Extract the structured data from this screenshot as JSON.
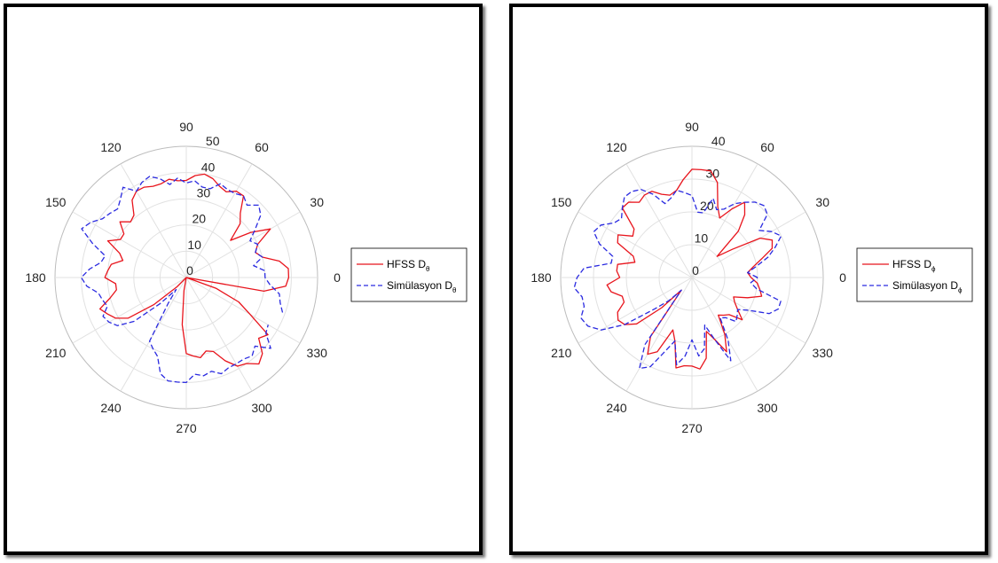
{
  "chart_data": [
    {
      "type": "polar",
      "angle_unit": "degrees",
      "angular_ticks": [
        0,
        30,
        60,
        90,
        120,
        150,
        180,
        210,
        240,
        270,
        300,
        330
      ],
      "angular_tick_labels": [
        "0",
        "30",
        "60",
        "90",
        "120",
        "150",
        "180",
        "210",
        "240",
        "270",
        "300",
        "330"
      ],
      "rlim": [
        0,
        50
      ],
      "radial_ticks": [
        0,
        10,
        20,
        30,
        40,
        50
      ],
      "radial_tick_labels": [
        "0",
        "10",
        "20",
        "30",
        "40",
        "50"
      ],
      "radial_label_angle": 80,
      "grid": true,
      "legend": {
        "position": "right"
      },
      "series": [
        {
          "name": "HFSS D",
          "subscript": "θ",
          "color": "#e8141c",
          "dash": "solid",
          "theta": [
            -15,
            -10,
            -5,
            0,
            5,
            10,
            15,
            20,
            25,
            30,
            35,
            40,
            45,
            50,
            55,
            60,
            65,
            70,
            75,
            80,
            85,
            90,
            95,
            100,
            105,
            110,
            115,
            120,
            125,
            130,
            135,
            140,
            145,
            150,
            155,
            160,
            165,
            170,
            175,
            180,
            185,
            190,
            195,
            200,
            205,
            210,
            215,
            220,
            225,
            230,
            240,
            250,
            255,
            260,
            265,
            270,
            275,
            280,
            285,
            290,
            295,
            300,
            305,
            310,
            315,
            320,
            325,
            330,
            335,
            340,
            345
          ],
          "r": [
            0,
            30,
            38,
            39,
            39,
            36,
            30,
            28,
            30,
            37,
            30,
            22,
            29,
            32,
            38,
            38,
            36,
            37,
            39,
            40,
            39,
            37,
            37,
            38,
            37,
            37,
            38,
            38,
            36,
            31,
            30,
            33,
            29,
            29,
            33,
            27,
            25,
            29,
            30,
            31,
            27,
            27,
            30,
            35,
            33,
            31,
            27,
            16,
            5,
            0,
            0,
            0,
            0,
            5,
            18,
            29,
            30,
            31,
            29,
            30,
            35,
            39,
            40,
            43,
            41,
            36,
            38,
            28,
            22,
            12,
            0
          ]
        },
        {
          "name": "Simülasyon D",
          "subscript": "θ",
          "color": "#2a2ae0",
          "dash": "dashed",
          "theta": [
            -20,
            -15,
            -10,
            -5,
            0,
            5,
            10,
            15,
            20,
            25,
            30,
            35,
            40,
            45,
            50,
            55,
            60,
            65,
            70,
            75,
            80,
            85,
            90,
            95,
            100,
            105,
            110,
            115,
            120,
            125,
            130,
            135,
            140,
            145,
            150,
            155,
            160,
            165,
            170,
            175,
            180,
            185,
            190,
            195,
            200,
            205,
            210,
            215,
            220,
            225,
            230,
            235,
            240,
            245,
            250,
            255,
            260,
            265,
            270,
            275,
            280,
            285,
            290,
            295,
            300,
            305,
            310,
            315,
            320,
            325,
            330
          ],
          "r": [
            39,
            37,
            36,
            32,
            30,
            30,
            26,
            30,
            28,
            30,
            28,
            32,
            37,
            39,
            36,
            38,
            37,
            37,
            38,
            35,
            35,
            37,
            36,
            38,
            36,
            39,
            41,
            40,
            38,
            42,
            39,
            37,
            38,
            39,
            42,
            44,
            38,
            32,
            33,
            37,
            40,
            38,
            34,
            33,
            32,
            35,
            34,
            32,
            26,
            14,
            6,
            12,
            28,
            30,
            32,
            38,
            40,
            40,
            40,
            37,
            38,
            37,
            39,
            38,
            38,
            38,
            39,
            37,
            42,
            37,
            36
          ]
        }
      ]
    },
    {
      "type": "polar",
      "angle_unit": "degrees",
      "angular_ticks": [
        0,
        30,
        60,
        90,
        120,
        150,
        180,
        210,
        240,
        270,
        300,
        330
      ],
      "angular_tick_labels": [
        "0",
        "30",
        "60",
        "90",
        "120",
        "150",
        "180",
        "210",
        "240",
        "270",
        "300",
        "330"
      ],
      "rlim": [
        0,
        40
      ],
      "radial_ticks": [
        0,
        10,
        20,
        30,
        40
      ],
      "radial_tick_labels": [
        "0",
        "10",
        "20",
        "30",
        "40"
      ],
      "radial_label_angle": 80,
      "grid": true,
      "legend": {
        "position": "right"
      },
      "series": [
        {
          "name": "HFSS D",
          "subscript": "ϕ",
          "color": "#e8141c",
          "dash": "solid",
          "theta": [
            0,
            5,
            10,
            15,
            20,
            25,
            30,
            35,
            40,
            45,
            50,
            55,
            60,
            65,
            70,
            75,
            80,
            85,
            90,
            95,
            100,
            105,
            110,
            115,
            120,
            125,
            130,
            135,
            140,
            145,
            150,
            155,
            160,
            165,
            170,
            175,
            180,
            185,
            190,
            195,
            200,
            205,
            210,
            215,
            220,
            225,
            230,
            235,
            240,
            245,
            250,
            255,
            260,
            265,
            270,
            275,
            280,
            285,
            290,
            295,
            300,
            305,
            310,
            315,
            320,
            325,
            330,
            335,
            340,
            345,
            350,
            355,
            360
          ],
          "r": [
            18,
            17,
            19,
            22,
            26,
            27,
            24,
            15,
            10,
            20,
            25,
            28,
            24,
            20,
            23,
            30,
            33,
            33,
            33,
            30,
            27,
            26,
            27,
            29,
            29,
            28,
            30,
            30,
            23,
            22,
            26,
            25,
            19,
            18,
            23,
            23,
            22,
            26,
            25,
            22,
            22,
            25,
            26,
            25,
            22,
            13,
            5,
            22,
            27,
            25,
            17,
            20,
            28,
            27,
            27,
            28,
            25,
            17,
            20,
            25,
            20,
            14,
            15,
            16,
            20,
            17,
            15,
            14,
            18,
            22,
            21,
            20,
            18
          ]
        },
        {
          "name": "Simülasyon D",
          "subscript": "ϕ",
          "color": "#2a2ae0",
          "dash": "dashed",
          "theta": [
            0,
            5,
            10,
            15,
            20,
            25,
            30,
            35,
            40,
            45,
            50,
            55,
            60,
            65,
            70,
            75,
            80,
            85,
            90,
            95,
            100,
            105,
            110,
            115,
            120,
            125,
            130,
            135,
            140,
            145,
            150,
            155,
            160,
            165,
            170,
            175,
            180,
            185,
            190,
            195,
            200,
            205,
            210,
            215,
            220,
            225,
            230,
            235,
            240,
            245,
            250,
            255,
            260,
            265,
            270,
            275,
            280,
            285,
            290,
            295,
            300,
            305,
            310,
            315,
            320,
            325,
            330,
            335,
            340,
            345,
            350,
            355,
            360
          ],
          "r": [
            20,
            17,
            20,
            24,
            27,
            30,
            28,
            25,
            30,
            31,
            30,
            28,
            26,
            23,
            22,
            25,
            20,
            20,
            25,
            26,
            27,
            25,
            24,
            28,
            31,
            32,
            32,
            30,
            28,
            29,
            32,
            33,
            30,
            25,
            25,
            33,
            35,
            36,
            34,
            34,
            36,
            35,
            32,
            25,
            15,
            10,
            5,
            25,
            32,
            30,
            24,
            20,
            27,
            24,
            19,
            24,
            22,
            15,
            20,
            28,
            22,
            15,
            16,
            19,
            18,
            17,
            20,
            26,
            28,
            28,
            20,
            18,
            20
          ]
        }
      ]
    }
  ]
}
